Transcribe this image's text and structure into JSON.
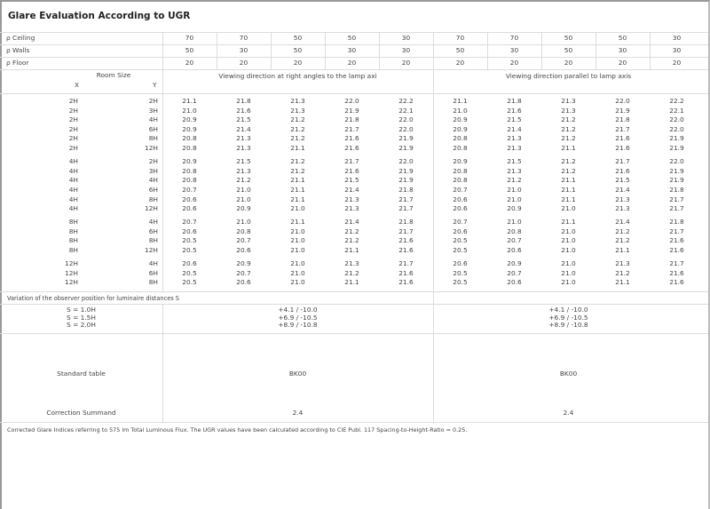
{
  "title": "Glare Evaluation According to UGR",
  "reflectances": [
    {
      "label": "ρ  Ceiling",
      "values": [
        "70",
        "70",
        "50",
        "50",
        "30",
        "70",
        "70",
        "50",
        "50",
        "30"
      ]
    },
    {
      "label": "ρ  Walls",
      "values": [
        "50",
        "30",
        "50",
        "30",
        "30",
        "50",
        "30",
        "50",
        "30",
        "30"
      ]
    },
    {
      "label": "ρ  Floor",
      "values": [
        "20",
        "20",
        "20",
        "20",
        "20",
        "20",
        "20",
        "20",
        "20",
        "20"
      ]
    }
  ],
  "room_size": {
    "label": "Room Size",
    "x_label": "X",
    "y_label": "Y"
  },
  "view_headers": {
    "perpendicular": "Viewing direction at right angles to the lamp axi",
    "parallel": "Viewing direction parallel to lamp axis"
  },
  "groups": [
    {
      "rows": [
        {
          "x": "2H",
          "y": "2H",
          "perp": [
            "21.1",
            "21.8",
            "21.3",
            "22.0",
            "22.2"
          ],
          "para": [
            "21.1",
            "21.8",
            "21.3",
            "22.0",
            "22.2"
          ]
        },
        {
          "x": "2H",
          "y": "3H",
          "perp": [
            "21.0",
            "21.6",
            "21.3",
            "21.9",
            "22.1"
          ],
          "para": [
            "21.0",
            "21.6",
            "21.3",
            "21.9",
            "22.1"
          ]
        },
        {
          "x": "2H",
          "y": "4H",
          "perp": [
            "20.9",
            "21.5",
            "21.2",
            "21.8",
            "22.0"
          ],
          "para": [
            "20.9",
            "21.5",
            "21.2",
            "21.8",
            "22.0"
          ]
        },
        {
          "x": "2H",
          "y": "6H",
          "perp": [
            "20.9",
            "21.4",
            "21.2",
            "21.7",
            "22.0"
          ],
          "para": [
            "20.9",
            "21.4",
            "21.2",
            "21.7",
            "22.0"
          ]
        },
        {
          "x": "2H",
          "y": "8H",
          "perp": [
            "20.8",
            "21.3",
            "21.2",
            "21.6",
            "21.9"
          ],
          "para": [
            "20.8",
            "21.3",
            "21.2",
            "21.6",
            "21.9"
          ]
        },
        {
          "x": "2H",
          "y": "12H",
          "perp": [
            "20.8",
            "21.3",
            "21.1",
            "21.6",
            "21.9"
          ],
          "para": [
            "20.8",
            "21.3",
            "21.1",
            "21.6",
            "21.9"
          ]
        }
      ]
    },
    {
      "rows": [
        {
          "x": "4H",
          "y": "2H",
          "perp": [
            "20.9",
            "21.5",
            "21.2",
            "21.7",
            "22.0"
          ],
          "para": [
            "20.9",
            "21.5",
            "21.2",
            "21.7",
            "22.0"
          ]
        },
        {
          "x": "4H",
          "y": "3H",
          "perp": [
            "20.8",
            "21.3",
            "21.2",
            "21.6",
            "21.9"
          ],
          "para": [
            "20.8",
            "21.3",
            "21.2",
            "21.6",
            "21.9"
          ]
        },
        {
          "x": "4H",
          "y": "4H",
          "perp": [
            "20.8",
            "21.2",
            "21.1",
            "21.5",
            "21.9"
          ],
          "para": [
            "20.8",
            "21.2",
            "21.1",
            "21.5",
            "21.9"
          ]
        },
        {
          "x": "4H",
          "y": "6H",
          "perp": [
            "20.7",
            "21.0",
            "21.1",
            "21.4",
            "21.8"
          ],
          "para": [
            "20.7",
            "21.0",
            "21.1",
            "21.4",
            "21.8"
          ]
        },
        {
          "x": "4H",
          "y": "8H",
          "perp": [
            "20.6",
            "21.0",
            "21.1",
            "21.3",
            "21.7"
          ],
          "para": [
            "20.6",
            "21.0",
            "21.1",
            "21.3",
            "21.7"
          ]
        },
        {
          "x": "4H",
          "y": "12H",
          "perp": [
            "20.6",
            "20.9",
            "21.0",
            "21.3",
            "21.7"
          ],
          "para": [
            "20.6",
            "20.9",
            "21.0",
            "21.3",
            "21.7"
          ]
        }
      ]
    },
    {
      "rows": [
        {
          "x": "8H",
          "y": "4H",
          "perp": [
            "20.7",
            "21.0",
            "21.1",
            "21.4",
            "21.8"
          ],
          "para": [
            "20.7",
            "21.0",
            "21.1",
            "21.4",
            "21.8"
          ]
        },
        {
          "x": "8H",
          "y": "6H",
          "perp": [
            "20.6",
            "20.8",
            "21.0",
            "21.2",
            "21.7"
          ],
          "para": [
            "20.6",
            "20.8",
            "21.0",
            "21.2",
            "21.7"
          ]
        },
        {
          "x": "8H",
          "y": "8H",
          "perp": [
            "20.5",
            "20.7",
            "21.0",
            "21.2",
            "21.6"
          ],
          "para": [
            "20.5",
            "20.7",
            "21.0",
            "21.2",
            "21.6"
          ]
        },
        {
          "x": "8H",
          "y": "12H",
          "perp": [
            "20.5",
            "20.6",
            "21.0",
            "21.1",
            "21.6"
          ],
          "para": [
            "20.5",
            "20.6",
            "21.0",
            "21.1",
            "21.6"
          ]
        }
      ]
    },
    {
      "rows": [
        {
          "x": "12H",
          "y": "4H",
          "perp": [
            "20.6",
            "20.9",
            "21.0",
            "21.3",
            "21.7"
          ],
          "para": [
            "20.6",
            "20.9",
            "21.0",
            "21.3",
            "21.7"
          ]
        },
        {
          "x": "12H",
          "y": "6H",
          "perp": [
            "20.5",
            "20.7",
            "21.0",
            "21.2",
            "21.6"
          ],
          "para": [
            "20.5",
            "20.7",
            "21.0",
            "21.2",
            "21.6"
          ]
        },
        {
          "x": "12H",
          "y": "8H",
          "perp": [
            "20.5",
            "20.6",
            "21.0",
            "21.1",
            "21.6"
          ],
          "para": [
            "20.5",
            "20.6",
            "21.0",
            "21.1",
            "21.6"
          ]
        }
      ]
    }
  ],
  "variation": {
    "label": "Variation of the observer position for luminaire distances S",
    "rows": [
      {
        "s": "S = 1.0H",
        "perp": "+4.1 / -10.0",
        "para": "+4.1 / -10.0"
      },
      {
        "s": "S = 1.5H",
        "perp": "+6.9 / -10.5",
        "para": "+6.9 / -10.5"
      },
      {
        "s": "S = 2.0H",
        "perp": "+8.9 / -10.8",
        "para": "+8.9 / -10.8"
      }
    ]
  },
  "standard_table": {
    "label": "Standard table",
    "perp": "BK00",
    "para": "BK00"
  },
  "correction": {
    "label": "Correction Summand",
    "perp": "2.4",
    "para": "2.4"
  },
  "footnote": "Corrected Glare Indices referring to 575 lm Total Luminous Flux. The UGR values have been calculated according to CIE Publ. 117    Spacing-to-Height-Ratio = 0.25."
}
